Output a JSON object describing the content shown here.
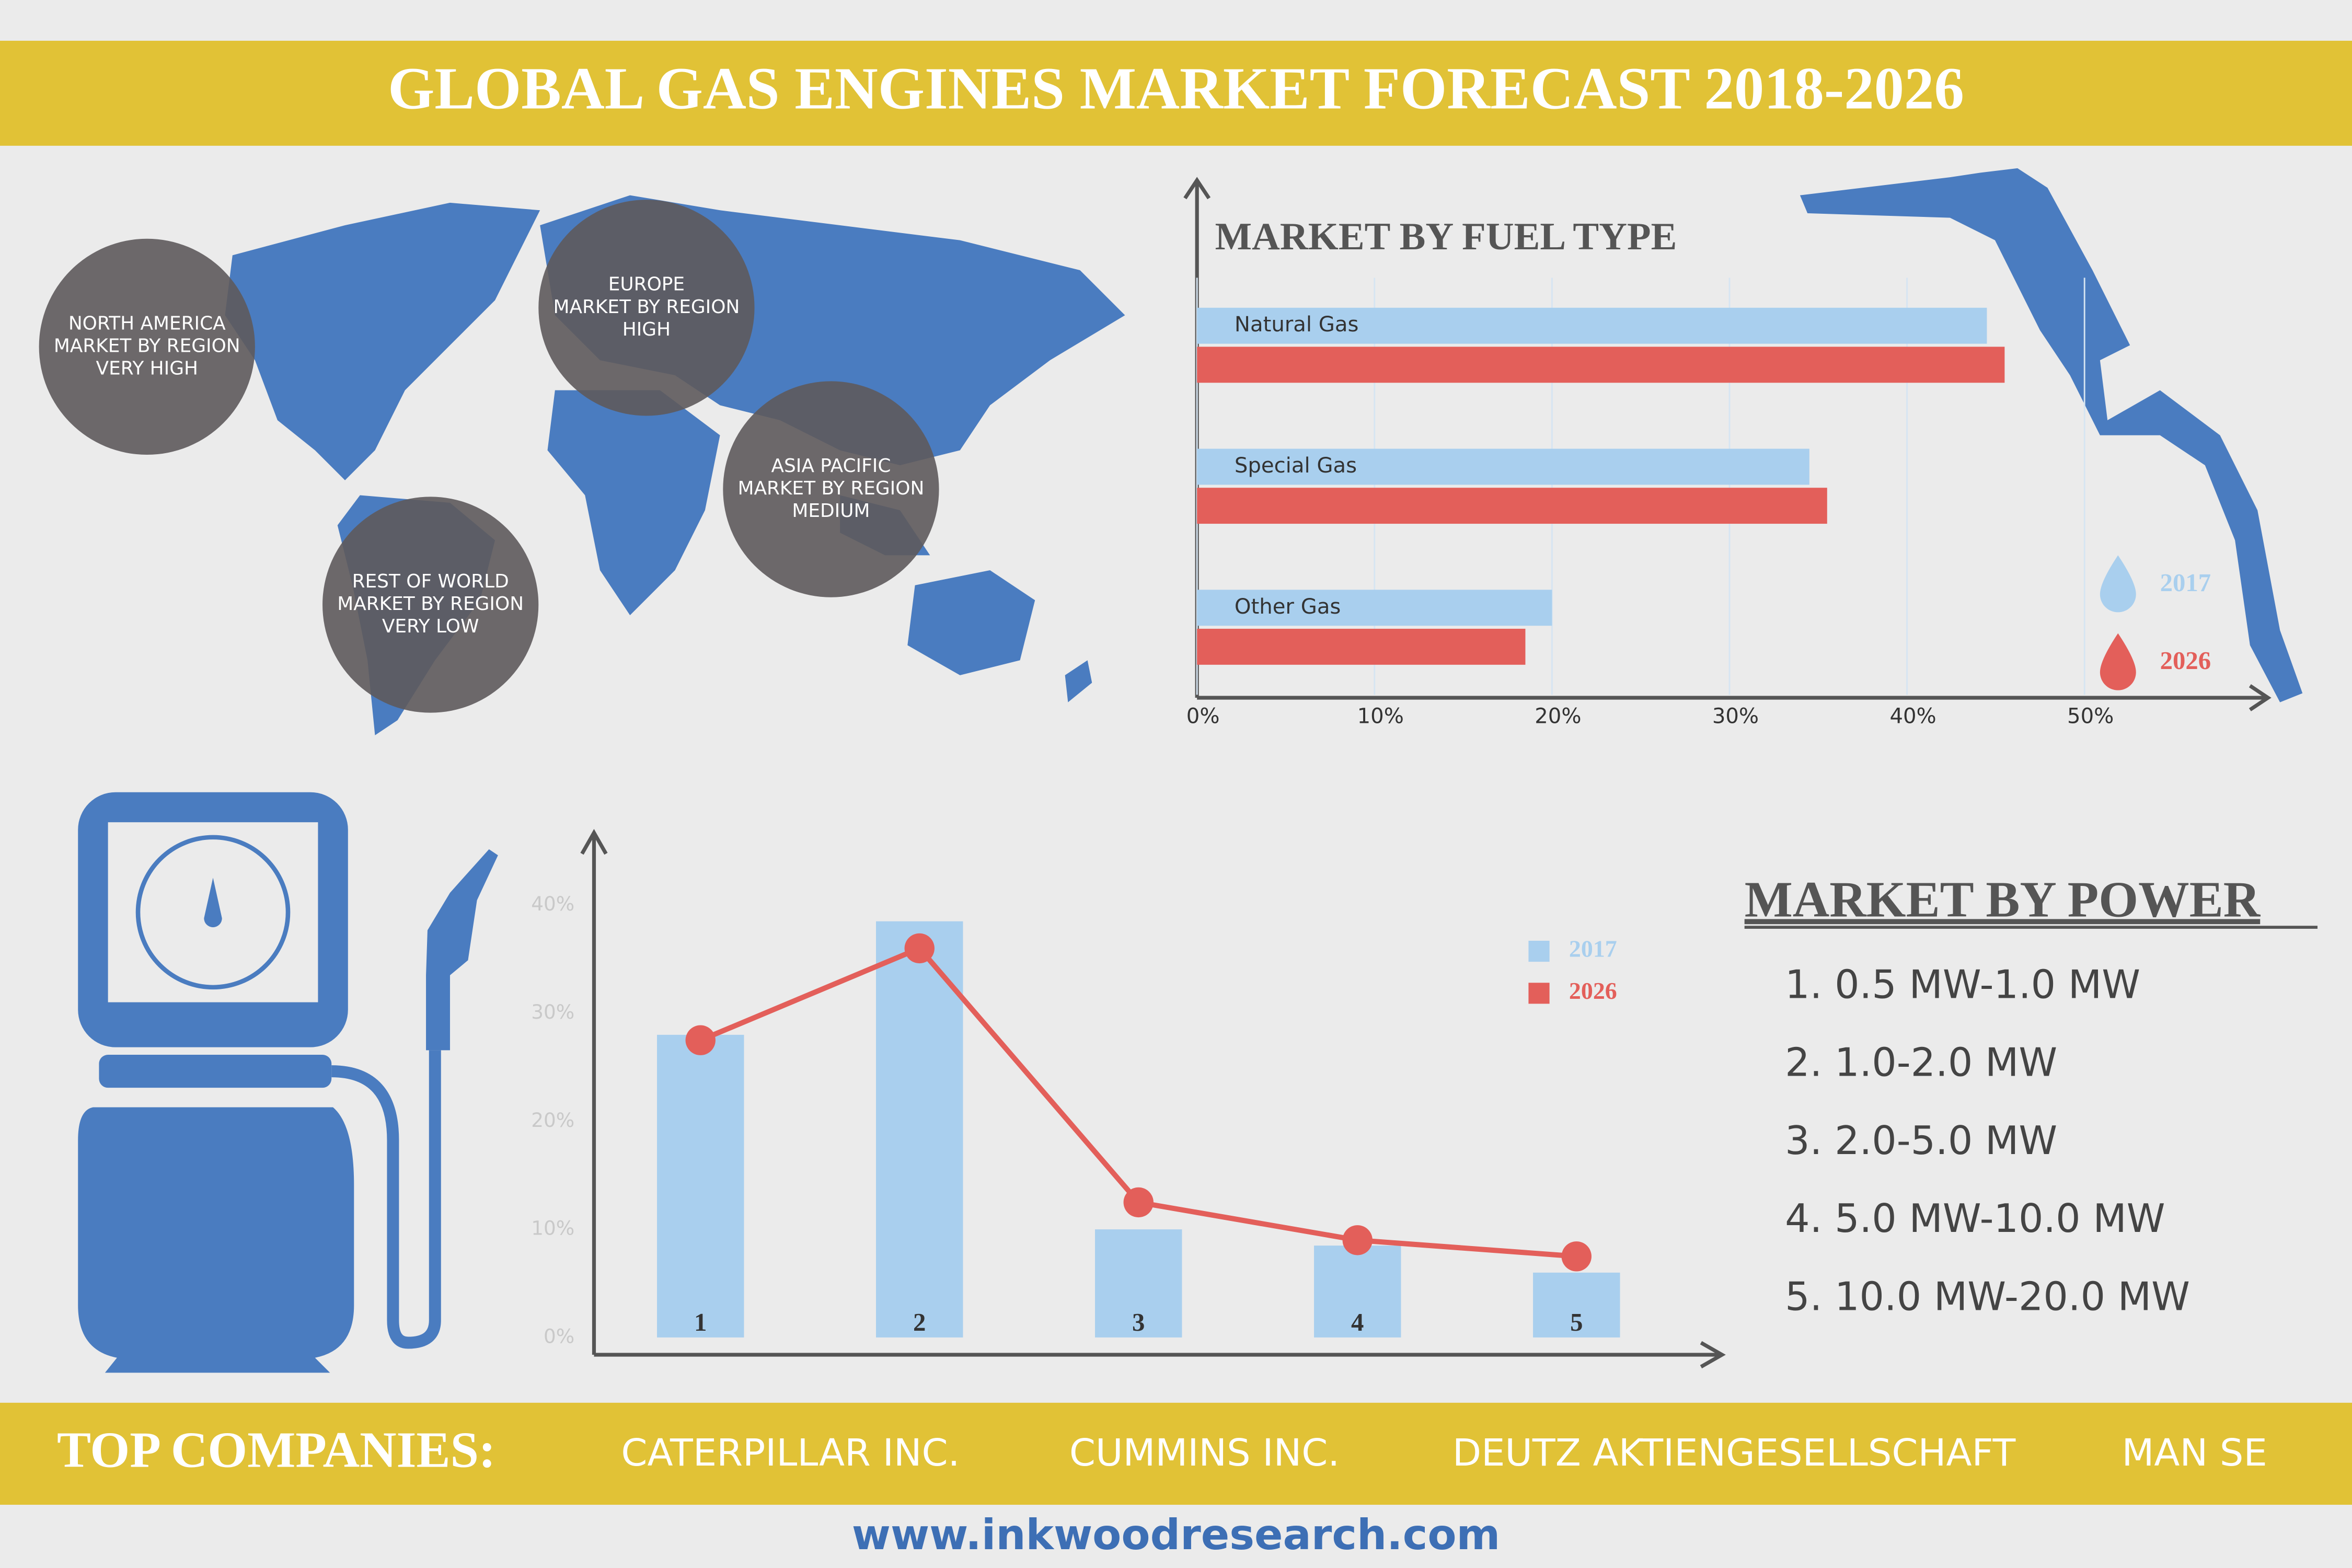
{
  "header": {
    "title": "GLOBAL GAS ENGINES MARKET FORECAST 2018-2026"
  },
  "regions": [
    {
      "name": "NORTH AMERICA",
      "subtitle": "MARKET BY REGION",
      "level": "VERY HIGH"
    },
    {
      "name": "EUROPE",
      "subtitle": "MARKET BY REGION",
      "level": "HIGH"
    },
    {
      "name": "ASIA PACIFIC",
      "subtitle": "MARKET BY REGION",
      "level": "MEDIUM"
    },
    {
      "name": "REST OF WORLD",
      "subtitle": "MARKET BY REGION",
      "level": "VERY LOW"
    }
  ],
  "chart_data": [
    {
      "type": "bar",
      "title": "MARKET BY FUEL TYPE",
      "categories": [
        "Natural Gas",
        "Special Gas",
        "Other Gas"
      ],
      "series": [
        {
          "name": "2017",
          "color": "#a9cfee",
          "values": [
            44.5,
            34.5,
            20
          ]
        },
        {
          "name": "2026",
          "color": "#e35f5a",
          "values": [
            45.5,
            35.5,
            18.5
          ]
        }
      ],
      "xlim": [
        0,
        60
      ],
      "xticks": [
        {
          "value": 0,
          "label": "0%"
        },
        {
          "value": 10,
          "label": "10%"
        },
        {
          "value": 20,
          "label": "20%"
        },
        {
          "value": 30,
          "label": "30%"
        },
        {
          "value": 40,
          "label": "40%"
        },
        {
          "value": 50,
          "label": "50%"
        }
      ],
      "grid": true
    },
    {
      "type": "bar-line",
      "categories": [
        "1",
        "2",
        "3",
        "4",
        "5"
      ],
      "series": [
        {
          "name": "2017",
          "color": "#a9cfee",
          "type": "bar",
          "values": [
            28,
            38.5,
            10,
            8.5,
            6
          ]
        },
        {
          "name": "2026",
          "color": "#e35f5a",
          "type": "line",
          "values": [
            27.5,
            36,
            12.5,
            9,
            7.5
          ]
        }
      ],
      "ylim": [
        -1.6,
        46
      ],
      "yticks": [
        {
          "value": 0,
          "label": "0%"
        },
        {
          "value": 10,
          "label": "10%"
        },
        {
          "value": 20,
          "label": "20%"
        },
        {
          "value": 30,
          "label": "30%"
        },
        {
          "value": 40,
          "label": "40%"
        }
      ],
      "grid": false
    }
  ],
  "power": {
    "title": "MARKET BY POWER",
    "items": [
      "1. 0.5 MW-1.0 MW",
      "2. 1.0-2.0 MW",
      "3. 2.0-5.0 MW",
      "4. 5.0 MW-10.0 MW",
      "5. 10.0 MW-20.0 MW"
    ]
  },
  "footer": {
    "label": "TOP COMPANIES:",
    "companies": [
      "CATERPILLAR INC.",
      "CUMMINS INC.",
      "DEUTZ AKTIENGESELLSCHAFT",
      "MAN SE"
    ],
    "url": "www.inkwoodresearch.com"
  }
}
